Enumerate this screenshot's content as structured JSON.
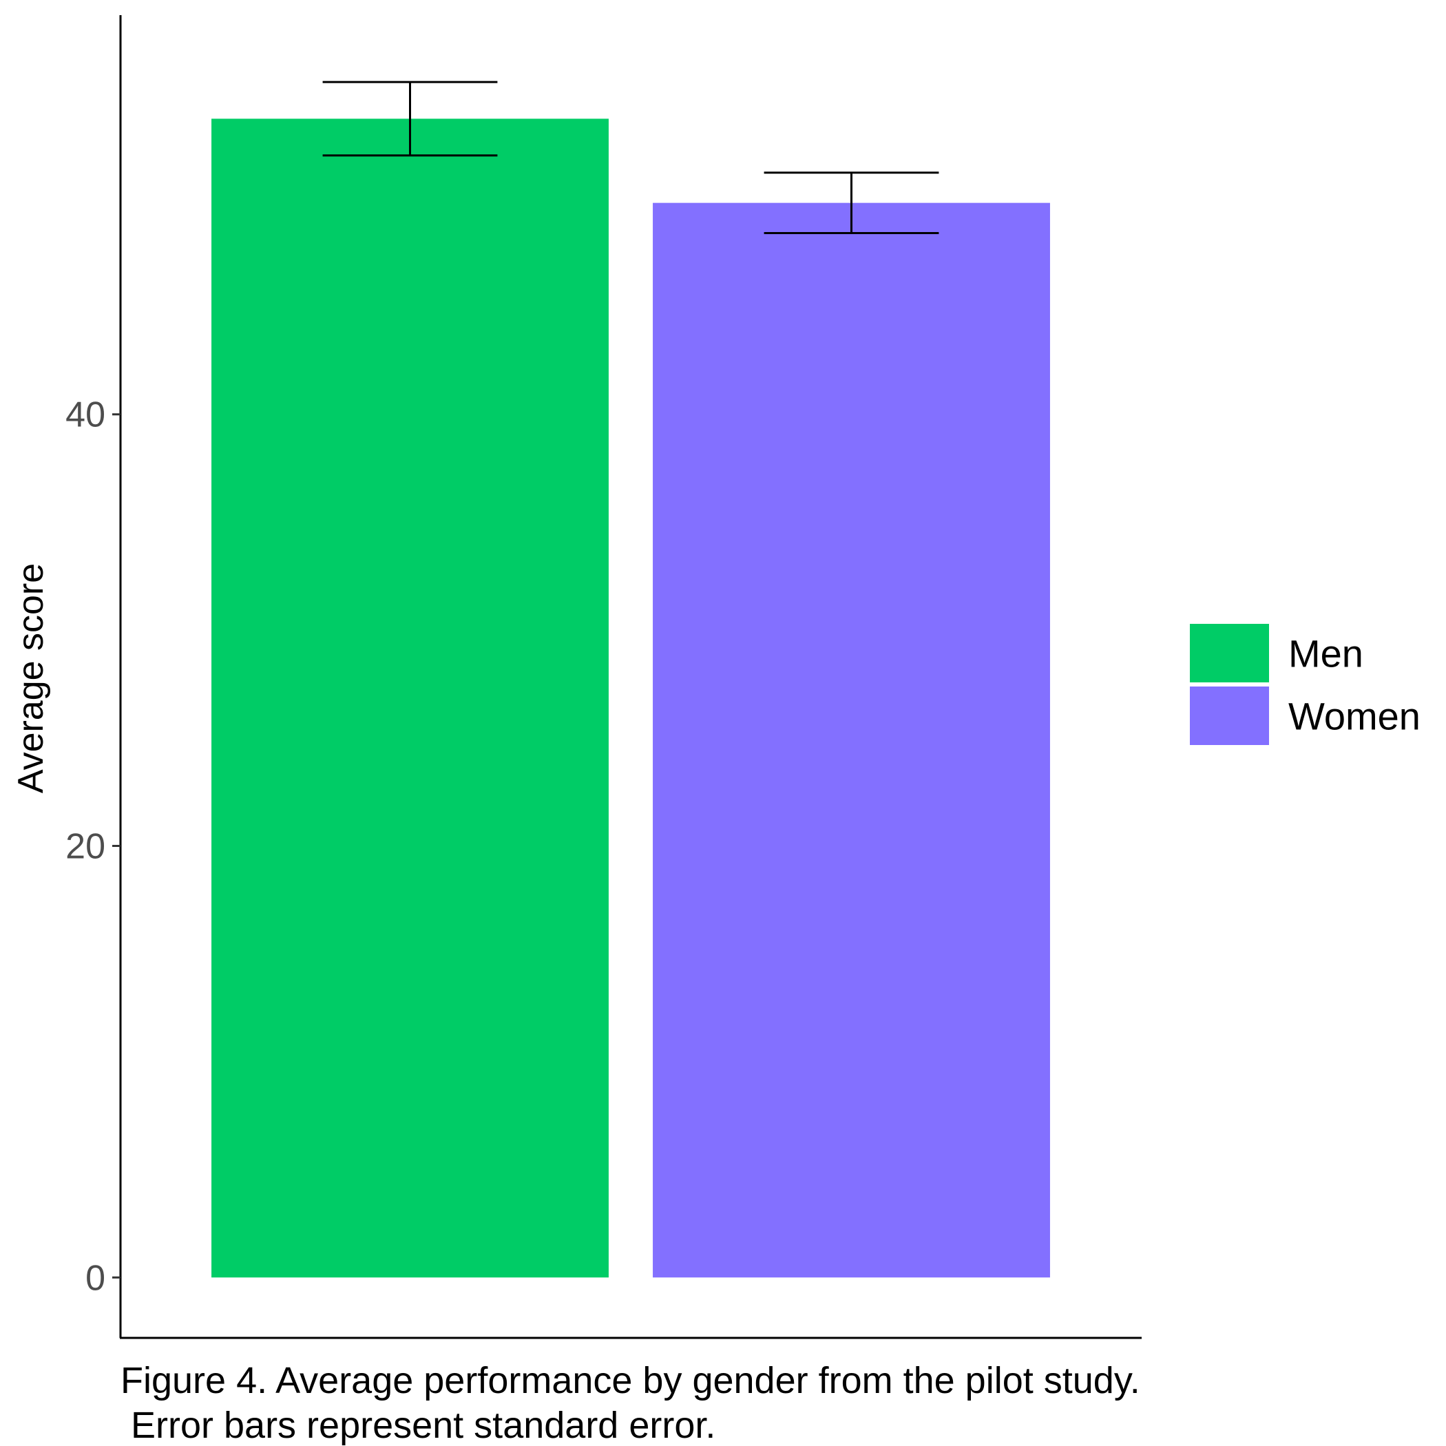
{
  "chart_data": {
    "type": "bar",
    "categories": [
      "Men",
      "Women"
    ],
    "values": [
      53.7,
      49.8
    ],
    "errors": [
      1.7,
      1.4
    ],
    "ylabel": "Average score",
    "xlabel": "",
    "ylim": [
      -2.8,
      58.5
    ],
    "yticks": [
      0,
      20,
      40
    ],
    "ytick_labels": [
      "0",
      "20",
      "40"
    ],
    "grid": false,
    "legend": {
      "position": "right",
      "entries": [
        "Men",
        "Women"
      ]
    },
    "colors": [
      "#00cc66",
      "#8370ff"
    ]
  },
  "caption": {
    "line1": "Figure 4. Average performance by gender from the pilot study.",
    "line2": " Error bars represent standard error."
  }
}
